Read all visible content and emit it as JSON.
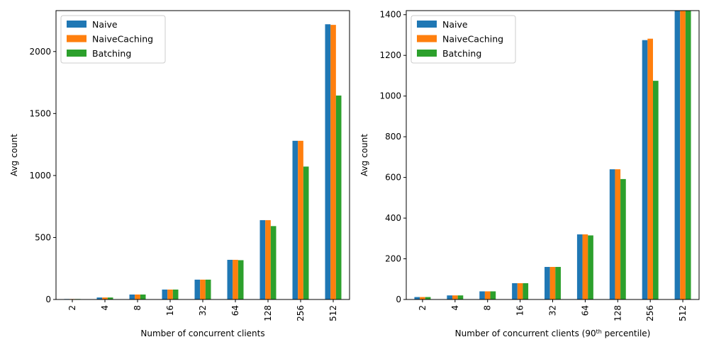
{
  "chart_data": [
    {
      "type": "bar",
      "categories": [
        "2",
        "4",
        "8",
        "16",
        "32",
        "64",
        "128",
        "256",
        "512"
      ],
      "series": [
        {
          "name": "Naive",
          "values": [
            4,
            16,
            40,
            80,
            160,
            320,
            640,
            1280,
            2220
          ]
        },
        {
          "name": "NaiveCaching",
          "values": [
            4,
            16,
            40,
            80,
            160,
            320,
            640,
            1280,
            2215
          ]
        },
        {
          "name": "Batching",
          "values": [
            4,
            16,
            40,
            80,
            160,
            317,
            592,
            1072,
            1645
          ]
        }
      ],
      "colors": [
        "#1f77b4",
        "#ff7f0e",
        "#2ca02c"
      ],
      "xlabel": "Number of concurrent clients",
      "ylabel": "Avg count",
      "ylim": [
        0,
        2330
      ],
      "yticks": [
        0,
        500,
        1000,
        1500,
        2000
      ],
      "legend": "top-left",
      "grid": false
    },
    {
      "type": "bar",
      "categories": [
        "2",
        "4",
        "8",
        "16",
        "32",
        "64",
        "128",
        "256",
        "512"
      ],
      "series": [
        {
          "name": "Naive",
          "values": [
            12,
            20,
            40,
            80,
            160,
            320,
            640,
            1275,
            1430
          ]
        },
        {
          "name": "NaiveCaching",
          "values": [
            12,
            20,
            40,
            80,
            160,
            320,
            640,
            1282,
            1430
          ]
        },
        {
          "name": "Batching",
          "values": [
            12,
            20,
            40,
            80,
            160,
            315,
            592,
            1075,
            1430
          ]
        }
      ],
      "colors": [
        "#1f77b4",
        "#ff7f0e",
        "#2ca02c"
      ],
      "xlabel_prefix": "Number of concurrent clients (90",
      "xlabel_sup": "th",
      "xlabel_suffix": " percentile)",
      "ylabel": "Avg count",
      "ylim": [
        0,
        1420
      ],
      "yticks": [
        0,
        200,
        400,
        600,
        800,
        1000,
        1200,
        1400
      ],
      "legend": "top-left",
      "grid": false
    }
  ]
}
